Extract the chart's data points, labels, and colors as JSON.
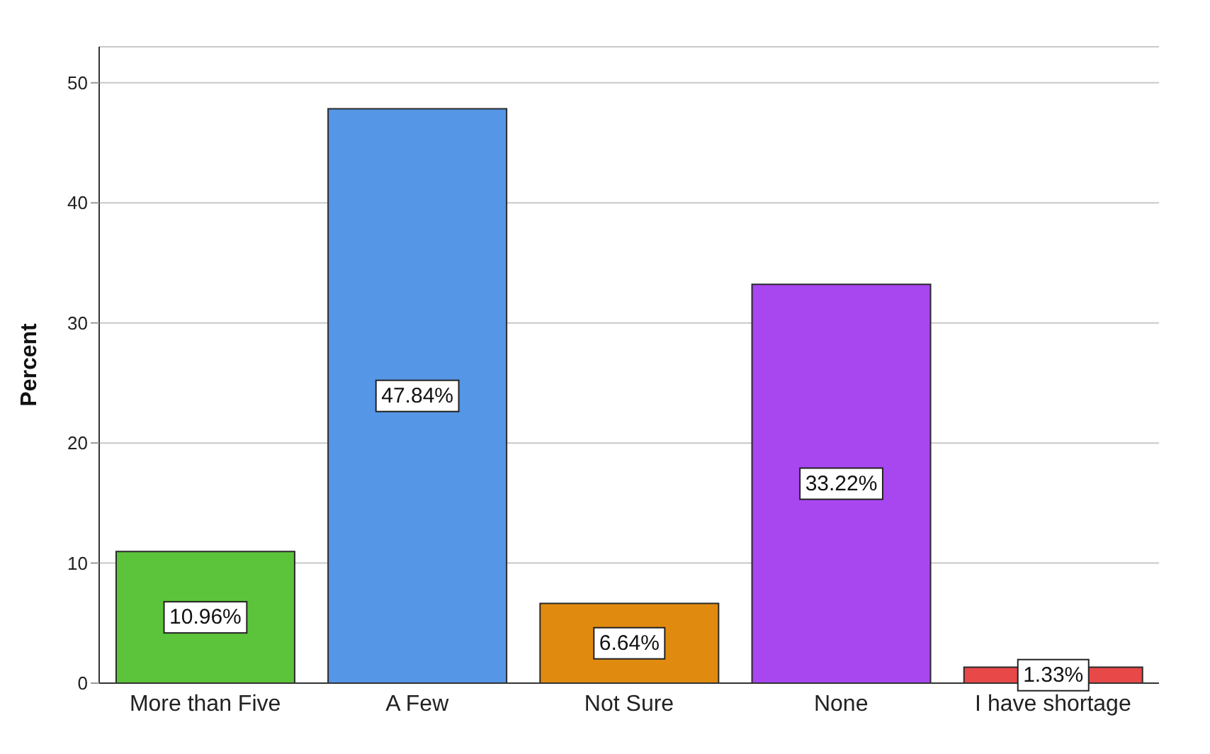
{
  "chart_data": {
    "type": "bar",
    "ylabel": "Percent",
    "categories": [
      "More than Five",
      "A Few",
      "Not Sure",
      "None",
      "I have shortage"
    ],
    "values": [
      10.96,
      47.84,
      6.64,
      33.22,
      1.33
    ],
    "colors": [
      "#5cc43a",
      "#5596e6",
      "#e08b10",
      "#a846f0",
      "#e84848"
    ],
    "value_labels": [
      "10.96%",
      "47.84%",
      "6.64%",
      "33.22%",
      "1.33%"
    ],
    "ylim": [
      0,
      53
    ],
    "yticks": [
      0,
      10,
      20,
      30,
      40,
      50
    ],
    "grid": "y"
  }
}
